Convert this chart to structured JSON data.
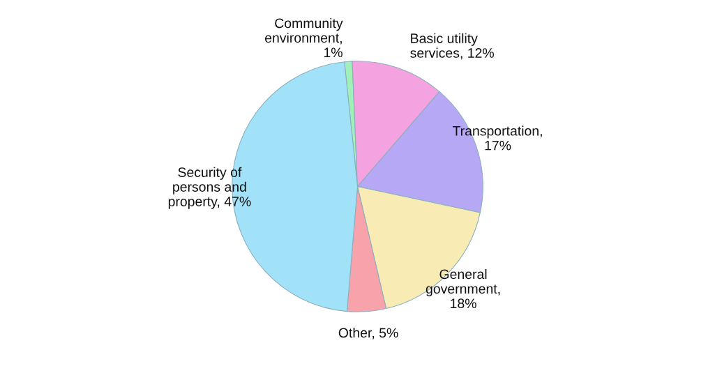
{
  "chart_data": {
    "type": "pie",
    "categories": [
      "Community\nenvironment,\n1%",
      "Basic utility\nservices, 12%",
      "Transportation,\n17%",
      "General\ngovernment,\n18%",
      "Other, 5%",
      "Security of\npersons and\nproperty, 47%"
    ],
    "values": [
      1,
      12,
      17,
      18,
      5,
      47
    ],
    "colors": [
      "#a0f0b8",
      "#f4a2e0",
      "#b6a8f4",
      "#f8ecb4",
      "#f8a2ac",
      "#a2e2f8"
    ]
  }
}
